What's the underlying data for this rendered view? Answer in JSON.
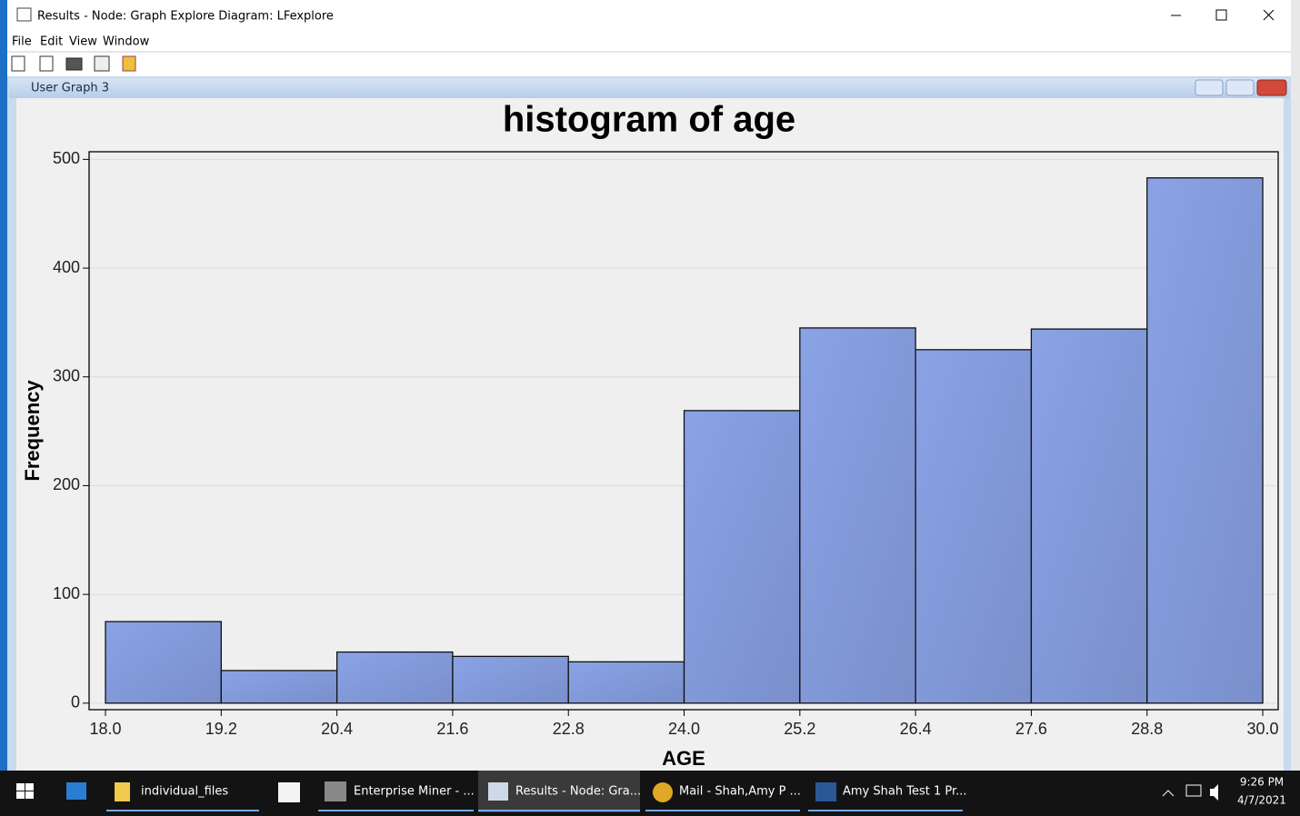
{
  "window": {
    "title": "Results - Node: Graph Explore  Diagram: LFexplore"
  },
  "menu": [
    "File",
    "Edit",
    "View",
    "Window"
  ],
  "inner_window": {
    "title": "User Graph 3"
  },
  "chart_data": {
    "type": "histogram",
    "title": "histogram of age",
    "x_label": "AGE",
    "y_label": "Frequency",
    "bins": [
      18.0,
      19.2,
      20.4,
      21.6,
      22.8,
      24.0,
      25.2,
      26.4,
      27.6,
      28.8,
      30.0
    ],
    "values": [
      75,
      30,
      47,
      43,
      38,
      269,
      345,
      325,
      344,
      483
    ],
    "color": "#8aa3e6",
    "xlim": [
      17.83,
      30.16
    ],
    "ylim": [
      -6,
      507
    ],
    "xticks": [
      {
        "value": 18.0,
        "label": "18.0"
      },
      {
        "value": 19.2,
        "label": "19.2"
      },
      {
        "value": 20.4,
        "label": "20.4"
      },
      {
        "value": 21.6,
        "label": "21.6"
      },
      {
        "value": 22.8,
        "label": "22.8"
      },
      {
        "value": 24.0,
        "label": "24.0"
      },
      {
        "value": 25.2,
        "label": "25.2"
      },
      {
        "value": 26.4,
        "label": "26.4"
      },
      {
        "value": 27.6,
        "label": "27.6"
      },
      {
        "value": 28.8,
        "label": "28.8"
      },
      {
        "value": 30.0,
        "label": "30.0"
      }
    ],
    "yticks": [
      0,
      100,
      200,
      300,
      400,
      500
    ],
    "grid": true
  },
  "taskbar": {
    "items": [
      "individual_files",
      "Enterprise Miner - ...",
      "Results - Node: Gra...",
      "Mail - Shah,Amy P ...",
      "Amy Shah Test 1 Pr..."
    ],
    "time": "9:26 PM",
    "date": "4/7/2021"
  }
}
